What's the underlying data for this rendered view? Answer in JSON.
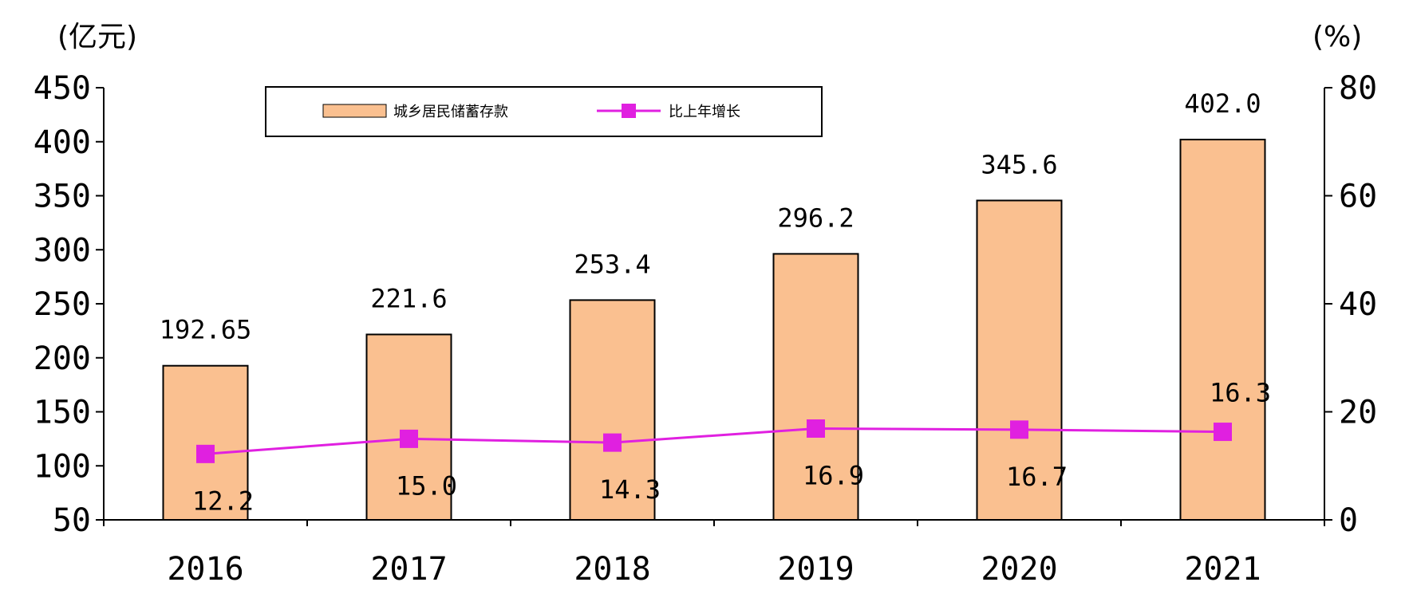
{
  "chart_data": {
    "type": "bar+line",
    "categories": [
      "2016",
      "2017",
      "2018",
      "2019",
      "2020",
      "2021"
    ],
    "series": [
      {
        "name": "城乡居民储蓄存款",
        "type": "bar",
        "axis": "left",
        "values": [
          192.65,
          221.6,
          253.4,
          296.2,
          345.6,
          402.0
        ],
        "labels": [
          "192.65",
          "221.6",
          "253.4",
          "296.2",
          "345.6",
          "402.0"
        ],
        "color": "#FAC090"
      },
      {
        "name": "比上年增长",
        "type": "line",
        "axis": "right",
        "values": [
          12.2,
          15.0,
          14.3,
          16.9,
          16.7,
          16.3
        ],
        "labels": [
          "12.2",
          "15.0",
          "14.3",
          "16.9",
          "16.7",
          "16.3"
        ],
        "color": "#E020E0"
      }
    ],
    "y_left": {
      "unit_label": "(亿元)",
      "range": [
        50,
        450
      ],
      "ticks": [
        "50",
        "100",
        "150",
        "200",
        "250",
        "300",
        "350",
        "400",
        "450"
      ]
    },
    "y_right": {
      "unit_label": "(%)",
      "range": [
        0,
        80
      ],
      "ticks": [
        "0",
        "20",
        "40",
        "60",
        "80"
      ]
    },
    "legend_position": "top-center",
    "grid": false
  }
}
